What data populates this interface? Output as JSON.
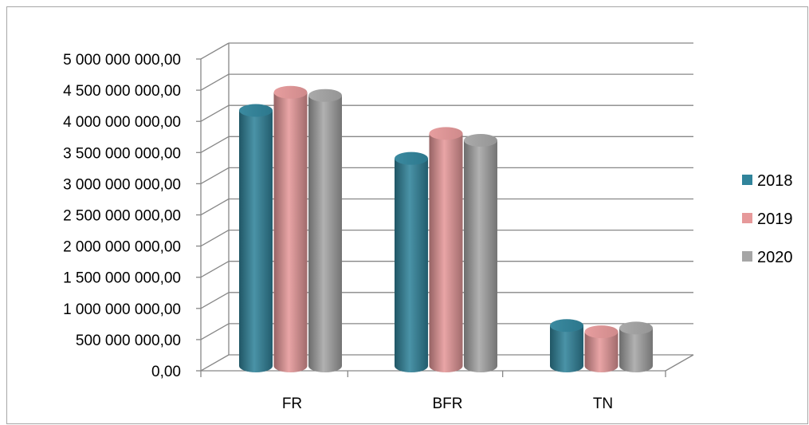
{
  "chart_data": {
    "type": "bar",
    "categories": [
      "FR",
      "BFR",
      "TN"
    ],
    "series": [
      {
        "name": "2018",
        "color": "#31849b",
        "values": [
          4150000000,
          3380000000,
          700000000
        ]
      },
      {
        "name": "2019",
        "color": "#e6999a",
        "values": [
          4440000000,
          3780000000,
          600000000
        ]
      },
      {
        "name": "2020",
        "color": "#a6a6a6",
        "values": [
          4390000000,
          3670000000,
          660000000
        ]
      }
    ],
    "y_ticks": [
      "0,00",
      "500 000 000,00",
      "1 000 000 000,00",
      "1 500 000 000,00",
      "2 000 000 000,00",
      "2 500 000 000,00",
      "3 000 000 000,00",
      "3 500 000 000,00",
      "4 000 000 000,00",
      "4 500 000 000,00",
      "5 000 000 000,00"
    ],
    "ylim": [
      0,
      5000000000
    ],
    "grid": true,
    "legend": "right"
  }
}
